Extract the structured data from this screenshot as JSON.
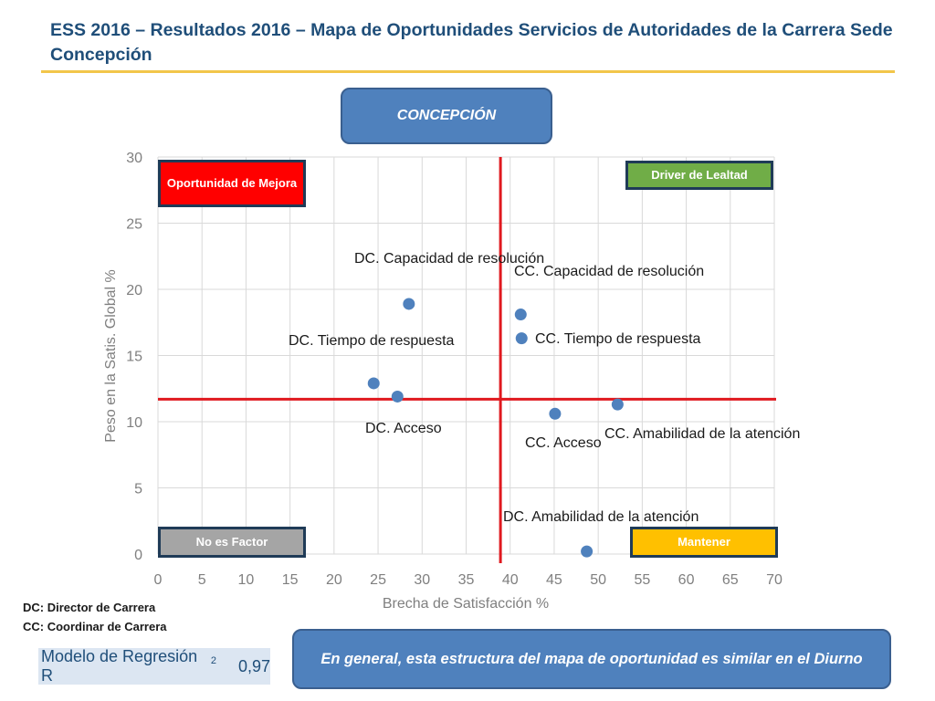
{
  "slide": {
    "title": "ESS 2016 – Resultados 2016 – Mapa de Oportunidades Servicios de Autoridades de la Carrera Sede Concepción",
    "region": "CONCEPCIÓN",
    "quadrants": {
      "top_left": "Oportunidad de Mejora",
      "top_right": "Driver de Lealtad",
      "bottom_left": "No es Factor",
      "bottom_right": "Mantener"
    },
    "legend_dc": "DC: Director de Carrera",
    "legend_cc": "CC: Coordinar de Carrera",
    "regression_label": "Modelo de Regresión R",
    "regression_sup": "2",
    "regression_value": "0,97",
    "conclusion": "En general, esta estructura del mapa de oportunidad es similar en el Diurno"
  },
  "chart_data": {
    "type": "scatter",
    "xlabel": "Brecha de Satisfacción %",
    "ylabel": "Peso en la Satis. Global %",
    "xlim": [
      0,
      70
    ],
    "ylim": [
      0,
      30
    ],
    "x_ticks": [
      "0",
      "5",
      "10",
      "15",
      "20",
      "25",
      "30",
      "35",
      "40",
      "45",
      "50",
      "55",
      "60",
      "65",
      "70"
    ],
    "y_ticks": [
      "0",
      "5",
      "10",
      "15",
      "20",
      "25",
      "30"
    ],
    "grid": true,
    "point_color": "#4f81bd",
    "reference_line_color": "#e0191f",
    "reference_lines": {
      "x": 38.9,
      "y": 11.7
    },
    "points": [
      {
        "label": "DC. Capacidad de resolución",
        "x": 28.5,
        "y": 18.9
      },
      {
        "label": "DC. Tiempo de respuesta",
        "x": 24.5,
        "y": 12.9
      },
      {
        "label": "DC. Acceso",
        "x": 27.2,
        "y": 11.9
      },
      {
        "label": "CC. Capacidad de resolución",
        "x": 41.2,
        "y": 18.1
      },
      {
        "label": "CC. Tiempo de respuesta",
        "x": 41.3,
        "y": 16.3
      },
      {
        "label": "CC. Acceso",
        "x": 45.1,
        "y": 10.6
      },
      {
        "label": "CC. Amabilidad de la atención",
        "x": 52.2,
        "y": 11.3
      },
      {
        "label": "DC. Amabilidad de la atención",
        "x": 48.7,
        "y": 0.2
      }
    ]
  }
}
